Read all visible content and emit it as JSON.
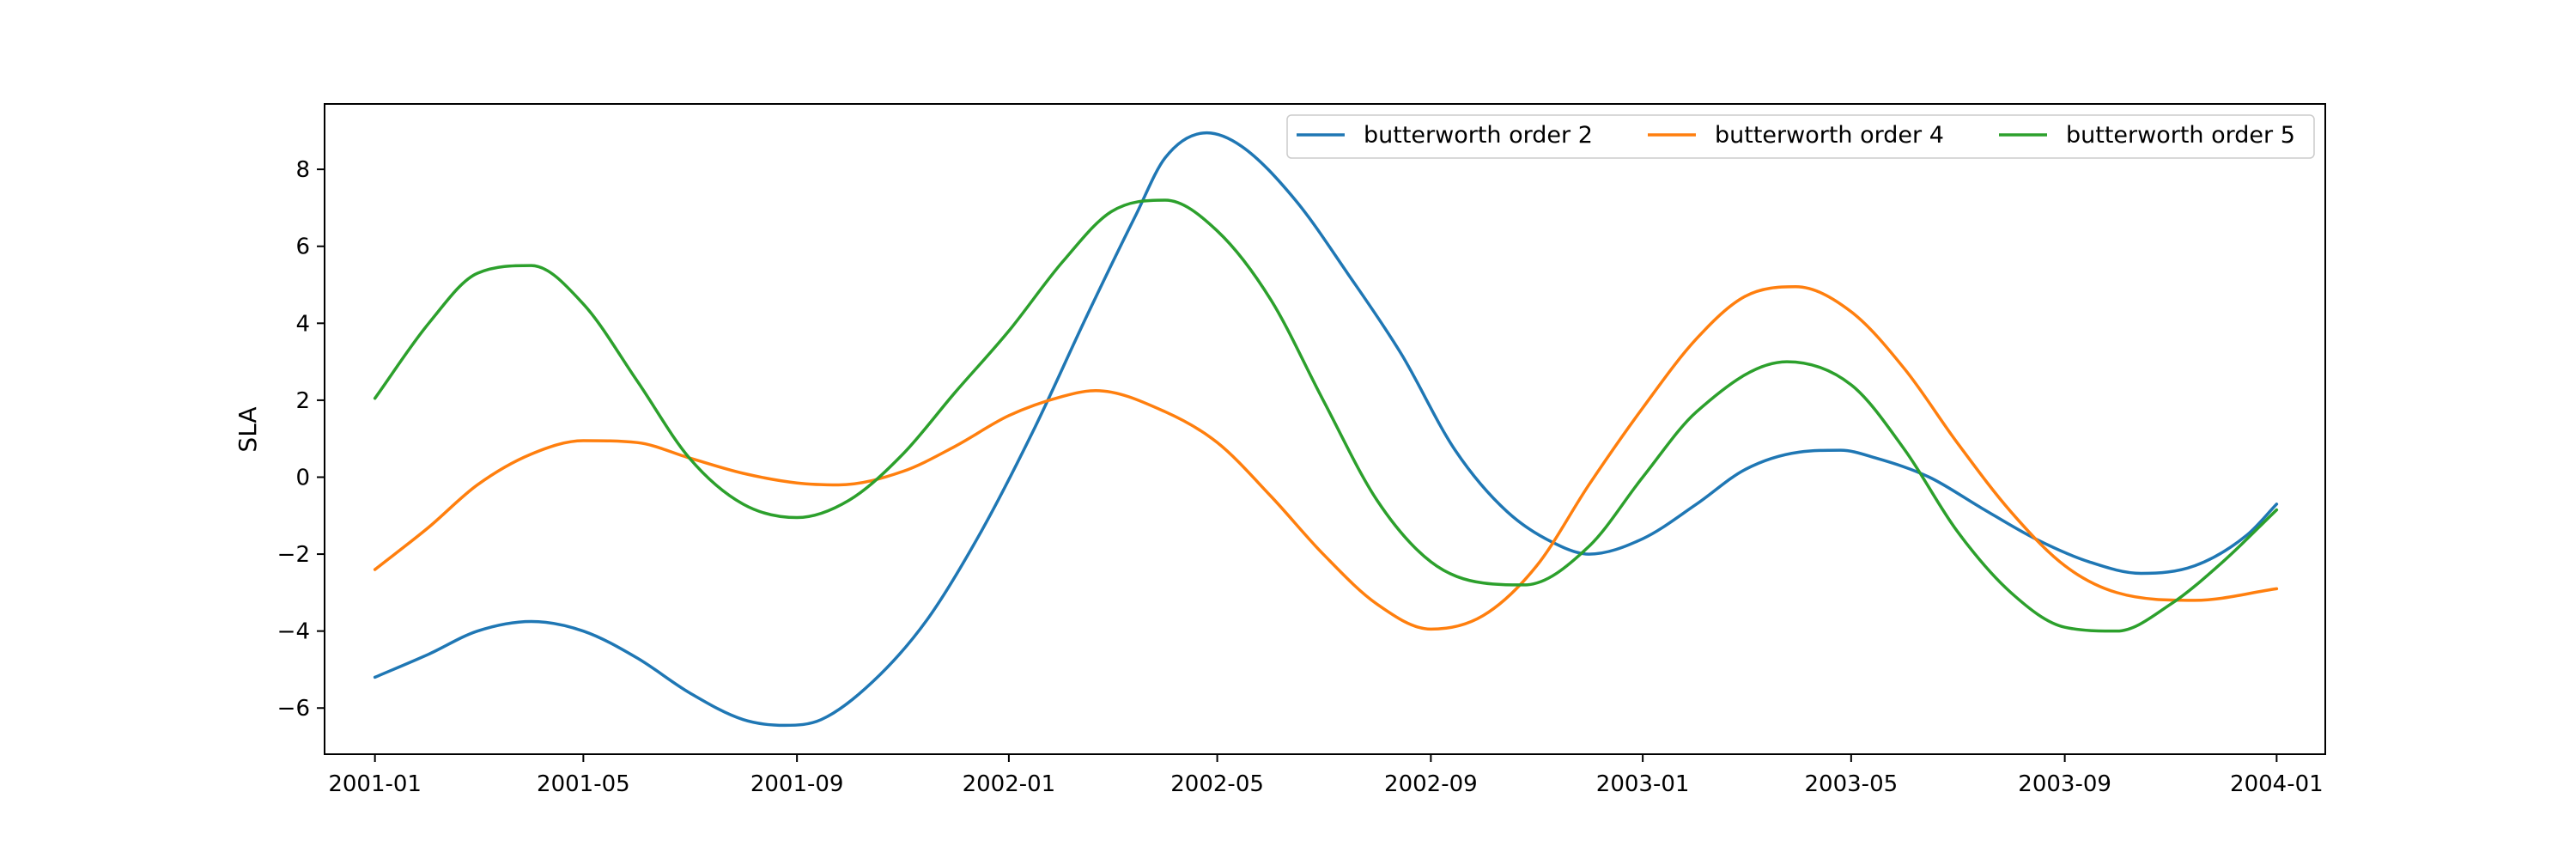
{
  "chart_data": {
    "type": "line",
    "title": "",
    "xlabel": "",
    "ylabel": "SLA",
    "xlim": [
      "2000-12-03",
      "2004-01-29"
    ],
    "ylim": [
      -7.2,
      9.7
    ],
    "grid": false,
    "legend": {
      "placement": "upper-right",
      "columns": 3
    },
    "x_ticks": [
      "2001-01",
      "2001-05",
      "2001-09",
      "2002-01",
      "2002-05",
      "2002-09",
      "2003-01",
      "2003-05",
      "2003-09",
      "2004-01"
    ],
    "y_ticks": [
      -6,
      -4,
      -2,
      0,
      2,
      4,
      6,
      8
    ],
    "y_tick_labels": [
      "−6",
      "−4",
      "−2",
      "0",
      "2",
      "4",
      "6",
      "8"
    ],
    "series": [
      {
        "name": "butterworth order 2",
        "color": "#1f77b4",
        "x": [
          "2001-01-01",
          "2001-02-01",
          "2001-03-01",
          "2001-04-01",
          "2001-05-01",
          "2001-06-01",
          "2001-07-01",
          "2001-08-01",
          "2001-08-25",
          "2001-09-15",
          "2001-10-15",
          "2001-11-15",
          "2001-12-15",
          "2002-01-15",
          "2002-02-15",
          "2002-03-15",
          "2002-04-01",
          "2002-04-25",
          "2002-05-15",
          "2002-06-15",
          "2002-07-15",
          "2002-08-15",
          "2002-09-15",
          "2002-10-15",
          "2002-11-15",
          "2002-12-01",
          "2003-01-01",
          "2003-02-01",
          "2003-03-01",
          "2003-04-01",
          "2003-04-25",
          "2003-05-15",
          "2003-06-15",
          "2003-07-15",
          "2003-08-15",
          "2003-09-15",
          "2003-10-15",
          "2003-11-15",
          "2003-12-15",
          "2004-01-01"
        ],
        "y": [
          -5.2,
          -4.6,
          -4.0,
          -3.75,
          -4.0,
          -4.7,
          -5.6,
          -6.3,
          -6.45,
          -6.3,
          -5.3,
          -3.7,
          -1.5,
          1.2,
          4.2,
          6.8,
          8.3,
          8.95,
          8.6,
          7.2,
          5.3,
          3.2,
          0.7,
          -0.9,
          -1.8,
          -2.0,
          -1.6,
          -0.7,
          0.2,
          0.65,
          0.7,
          0.5,
          0.0,
          -0.8,
          -1.6,
          -2.2,
          -2.5,
          -2.3,
          -1.5,
          -0.7
        ]
      },
      {
        "name": "butterworth order 4",
        "color": "#ff7f0e",
        "x": [
          "2001-01-01",
          "2001-02-01",
          "2001-03-01",
          "2001-04-01",
          "2001-05-01",
          "2001-06-01",
          "2001-07-01",
          "2001-08-01",
          "2001-09-01",
          "2001-09-25",
          "2001-11-01",
          "2001-12-01",
          "2002-01-01",
          "2002-02-01",
          "2002-02-20",
          "2002-04-01",
          "2002-05-01",
          "2002-06-01",
          "2002-07-01",
          "2002-08-01",
          "2002-09-01",
          "2002-10-01",
          "2002-11-01",
          "2002-12-01",
          "2003-01-01",
          "2003-02-01",
          "2003-03-01",
          "2003-03-30",
          "2003-05-01",
          "2003-06-01",
          "2003-07-01",
          "2003-08-01",
          "2003-09-01",
          "2003-10-01",
          "2003-11-15",
          "2004-01-01"
        ],
        "y": [
          -2.4,
          -1.3,
          -0.2,
          0.6,
          0.95,
          0.9,
          0.5,
          0.1,
          -0.15,
          -0.2,
          0.15,
          0.8,
          1.6,
          2.1,
          2.25,
          1.7,
          0.9,
          -0.5,
          -2.0,
          -3.3,
          -3.95,
          -3.6,
          -2.3,
          -0.2,
          1.8,
          3.6,
          4.7,
          4.95,
          4.3,
          2.8,
          0.9,
          -0.9,
          -2.3,
          -3.0,
          -3.2,
          -2.9
        ]
      },
      {
        "name": "butterworth order 5",
        "color": "#2ca02c",
        "x": [
          "2001-01-01",
          "2001-02-01",
          "2001-03-01",
          "2001-04-01",
          "2001-05-01",
          "2001-06-01",
          "2001-07-01",
          "2001-08-01",
          "2001-09-01",
          "2001-10-01",
          "2001-11-01",
          "2001-12-01",
          "2002-01-01",
          "2002-02-01",
          "2002-03-01",
          "2002-04-01",
          "2002-05-01",
          "2002-06-01",
          "2002-07-01",
          "2002-08-01",
          "2002-09-01",
          "2002-10-01",
          "2002-10-25",
          "2002-12-01",
          "2003-01-01",
          "2003-02-01",
          "2003-03-25",
          "2003-05-01",
          "2003-06-01",
          "2003-07-01",
          "2003-08-01",
          "2003-09-01",
          "2003-10-01",
          "2003-11-01",
          "2003-12-01",
          "2004-01-01"
        ],
        "y": [
          2.05,
          4.0,
          5.3,
          5.5,
          4.5,
          2.5,
          0.5,
          -0.7,
          -1.05,
          -0.6,
          0.6,
          2.2,
          3.8,
          5.6,
          6.9,
          7.2,
          6.4,
          4.6,
          2.0,
          -0.6,
          -2.2,
          -2.75,
          -2.8,
          -1.8,
          0.0,
          1.7,
          3.0,
          2.4,
          0.7,
          -1.4,
          -3.0,
          -3.9,
          -4.0,
          -3.3,
          -2.2,
          -0.85
        ]
      }
    ]
  }
}
